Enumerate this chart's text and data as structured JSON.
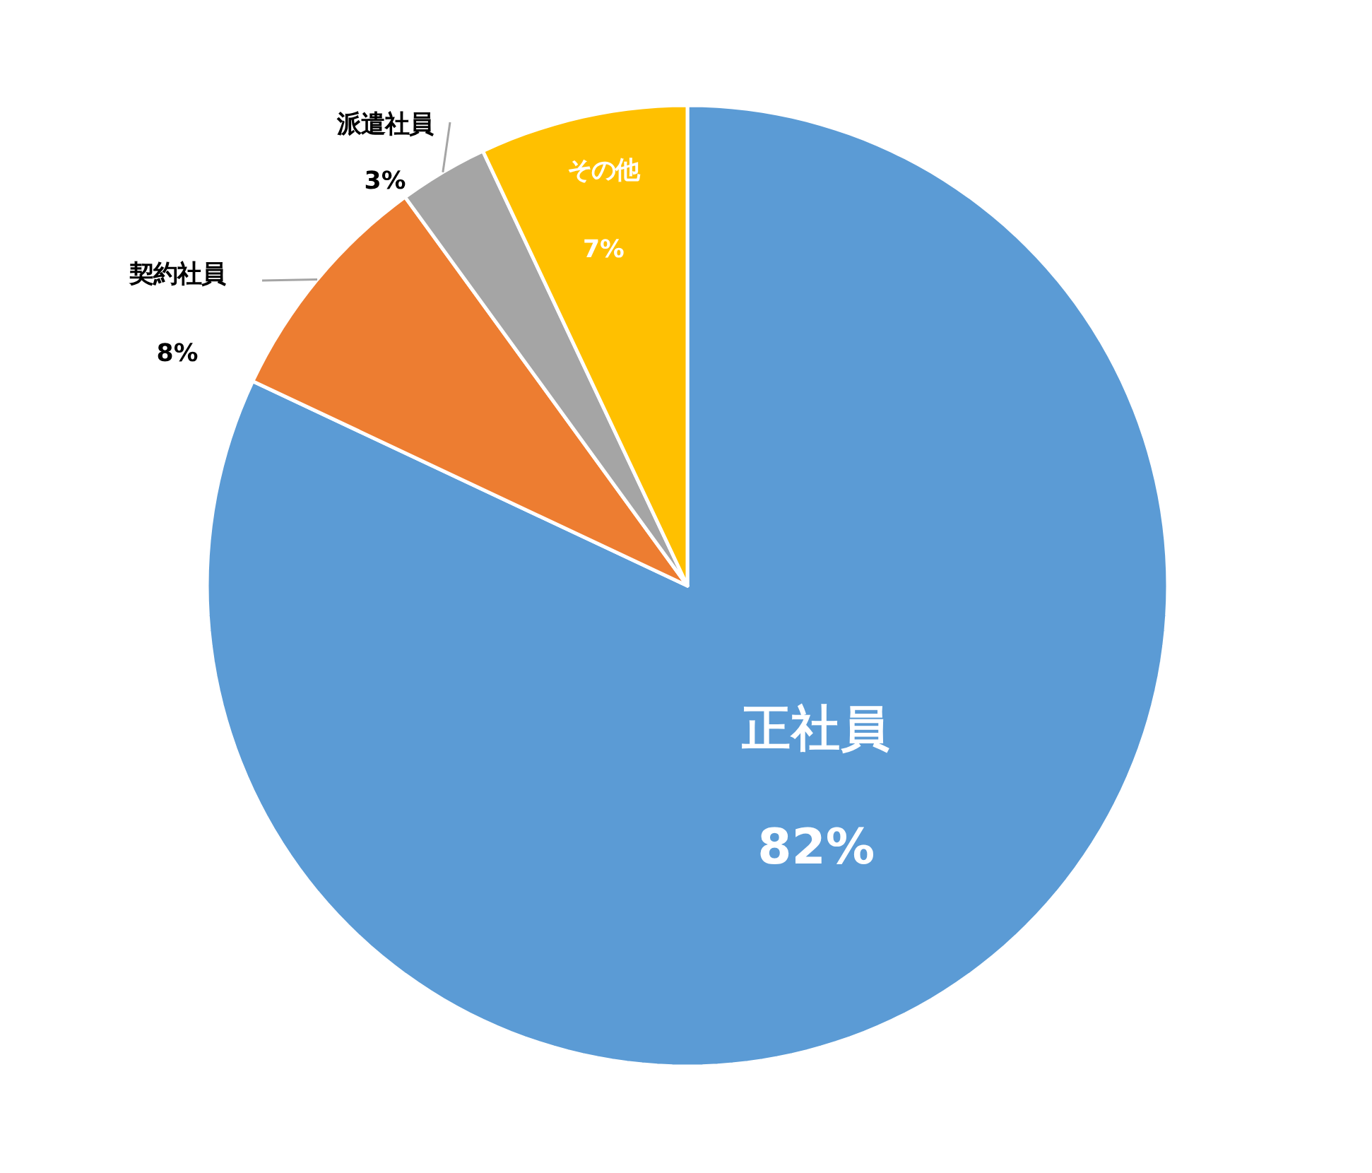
{
  "chart_data": {
    "type": "pie",
    "categories": [
      "正社員",
      "契約社員",
      "派遣社員",
      "その他"
    ],
    "values": [
      82,
      8,
      3,
      7
    ],
    "value_labels": [
      "82%",
      "8%",
      "3%",
      "7%"
    ],
    "colors": [
      "#5b9bd5",
      "#ed7d31",
      "#a5a5a5",
      "#ffc000"
    ]
  }
}
